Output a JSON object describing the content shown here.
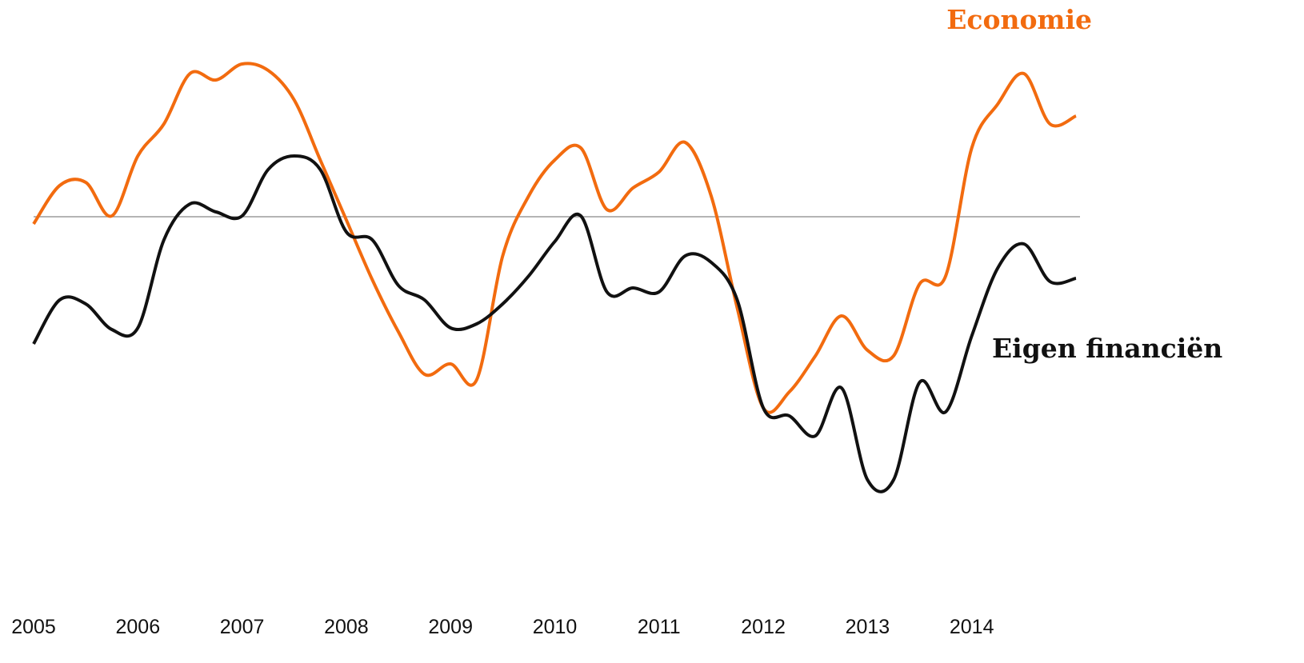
{
  "chart_data": {
    "type": "line",
    "x": [
      2005,
      2005.25,
      2005.5,
      2005.75,
      2006,
      2006.25,
      2006.5,
      2006.75,
      2007,
      2007.25,
      2007.5,
      2007.75,
      2008,
      2008.25,
      2008.5,
      2008.75,
      2009,
      2009.25,
      2009.5,
      2009.75,
      2010,
      2010.25,
      2010.5,
      2010.75,
      2011,
      2011.25,
      2011.5,
      2011.75,
      2012,
      2012.25,
      2012.5,
      2012.75,
      2013,
      2013.25,
      2013.5,
      2013.75,
      2014,
      2014.25,
      2014.5,
      2014.75,
      2015
    ],
    "series": [
      {
        "name": "Economie",
        "color": "#f26b0f",
        "values": [
          -0.09,
          0.39,
          0.43,
          0.01,
          0.76,
          1.16,
          1.79,
          1.71,
          1.91,
          1.83,
          1.46,
          0.71,
          -0.04,
          -0.79,
          -1.44,
          -1.97,
          -1.84,
          -2.04,
          -0.49,
          0.26,
          0.71,
          0.86,
          0.09,
          0.36,
          0.56,
          0.93,
          0.26,
          -1.14,
          -2.39,
          -2.19,
          -1.74,
          -1.24,
          -1.67,
          -1.74,
          -0.84,
          -0.74,
          0.86,
          1.41,
          1.79,
          1.16,
          1.26
        ]
      },
      {
        "name": "Eigen financiën",
        "color": "#111111",
        "values": [
          -1.59,
          -1.04,
          -1.09,
          -1.41,
          -1.39,
          -0.29,
          0.16,
          0.06,
          0.01,
          0.59,
          0.76,
          0.59,
          -0.19,
          -0.29,
          -0.86,
          -1.04,
          -1.39,
          -1.34,
          -1.09,
          -0.74,
          -0.31,
          0.01,
          -0.94,
          -0.89,
          -0.94,
          -0.49,
          -0.57,
          -1.04,
          -2.39,
          -2.49,
          -2.74,
          -2.14,
          -3.29,
          -3.29,
          -2.07,
          -2.44,
          -1.49,
          -0.64,
          -0.34,
          -0.81,
          -0.77
        ]
      }
    ],
    "xlim": [
      2005,
      2015
    ],
    "xticks": [
      2005,
      2006,
      2007,
      2008,
      2009,
      2010,
      2011,
      2012,
      2013,
      2014
    ],
    "ylim": [
      -4,
      2.5
    ],
    "zero_line": 0
  }
}
